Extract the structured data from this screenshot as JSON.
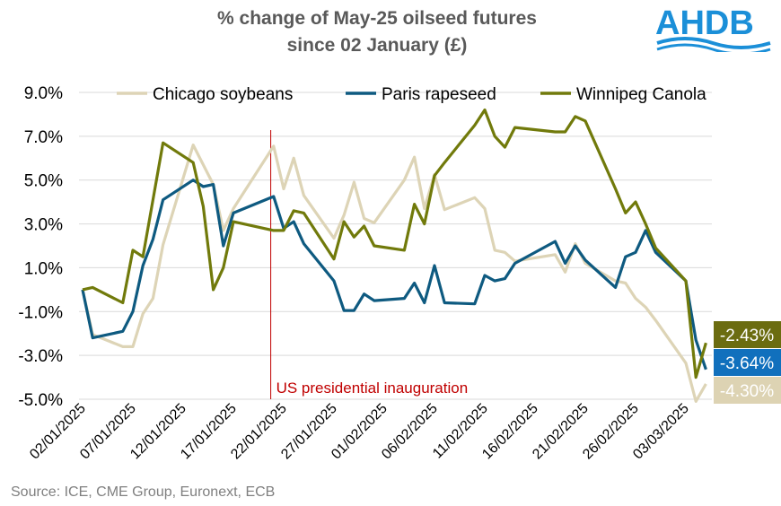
{
  "chart_data": {
    "type": "line",
    "title_line1": "% change of May-25 oilseed futures",
    "title_line2": "since 02 January (£)",
    "xlabel": "",
    "ylabel": "",
    "ylim": [
      -5,
      9
    ],
    "y_ticks": [
      -5,
      -3,
      -1,
      1,
      3,
      5,
      7,
      9
    ],
    "y_tick_labels": [
      "-5.0%",
      "-3.0%",
      "-1.0%",
      "1.0%",
      "3.0%",
      "5.0%",
      "7.0%",
      "9.0%"
    ],
    "x_ticks": [
      "2025-01-02",
      "2025-01-07",
      "2025-01-12",
      "2025-01-17",
      "2025-01-22",
      "2025-01-27",
      "2025-02-01",
      "2025-02-06",
      "2025-02-11",
      "2025-02-16",
      "2025-02-21",
      "2025-02-26",
      "2025-03-03"
    ],
    "x_tick_labels": [
      "02/01/2025",
      "07/01/2025",
      "12/01/2025",
      "17/01/2025",
      "22/01/2025",
      "27/01/2025",
      "01/02/2025",
      "06/02/2025",
      "11/02/2025",
      "16/02/2025",
      "21/02/2025",
      "26/02/2025",
      "03/03/2025"
    ],
    "grid": "horizontal",
    "legend_position": "top",
    "annotation": {
      "date": "2025-01-20",
      "label": "US presidential inauguration",
      "color": "#c00000"
    },
    "series": [
      {
        "name": "Chicago soybeans",
        "color": "#ddd4b6",
        "end_label": "-4.30%",
        "label_bg": "#ddd3b3",
        "points": [
          [
            "2025-01-02",
            0.0
          ],
          [
            "2025-01-03",
            -2.05
          ],
          [
            "2025-01-06",
            -2.6
          ],
          [
            "2025-01-07",
            -2.6
          ],
          [
            "2025-01-08",
            -1.1
          ],
          [
            "2025-01-09",
            -0.4
          ],
          [
            "2025-01-10",
            2.05
          ],
          [
            "2025-01-13",
            6.6
          ],
          [
            "2025-01-14",
            5.7
          ],
          [
            "2025-01-15",
            4.8
          ],
          [
            "2025-01-16",
            2.7
          ],
          [
            "2025-01-17",
            3.7
          ],
          [
            "2025-01-21",
            6.55
          ],
          [
            "2025-01-22",
            4.6
          ],
          [
            "2025-01-23",
            6.0
          ],
          [
            "2025-01-24",
            4.3
          ],
          [
            "2025-01-27",
            2.35
          ],
          [
            "2025-01-28",
            3.4
          ],
          [
            "2025-01-29",
            4.9
          ],
          [
            "2025-01-30",
            3.25
          ],
          [
            "2025-01-31",
            3.05
          ],
          [
            "2025-02-03",
            5.0
          ],
          [
            "2025-02-04",
            6.05
          ],
          [
            "2025-02-05",
            3.7
          ],
          [
            "2025-02-06",
            5.25
          ],
          [
            "2025-02-07",
            3.65
          ],
          [
            "2025-02-10",
            4.2
          ],
          [
            "2025-02-11",
            3.7
          ],
          [
            "2025-02-12",
            1.8
          ],
          [
            "2025-02-13",
            1.7
          ],
          [
            "2025-02-14",
            1.3
          ],
          [
            "2025-02-18",
            1.6
          ],
          [
            "2025-02-19",
            0.8
          ],
          [
            "2025-02-20",
            2.1
          ],
          [
            "2025-02-21",
            1.2
          ],
          [
            "2025-02-24",
            0.4
          ],
          [
            "2025-02-25",
            0.3
          ],
          [
            "2025-02-26",
            -0.4
          ],
          [
            "2025-02-27",
            -0.8
          ],
          [
            "2025-02-28",
            -1.4
          ],
          [
            "2025-03-03",
            -3.35
          ],
          [
            "2025-03-04",
            -5.1
          ],
          [
            "2025-03-05",
            -4.3
          ]
        ]
      },
      {
        "name": "Paris rapeseed",
        "color": "#0e5a80",
        "end_label": "-3.64%",
        "label_bg": "#1170bd",
        "points": [
          [
            "2025-01-02",
            0.0
          ],
          [
            "2025-01-03",
            -2.2
          ],
          [
            "2025-01-06",
            -1.9
          ],
          [
            "2025-01-07",
            -1.0
          ],
          [
            "2025-01-08",
            1.1
          ],
          [
            "2025-01-09",
            2.3
          ],
          [
            "2025-01-10",
            4.1
          ],
          [
            "2025-01-13",
            5.0
          ],
          [
            "2025-01-14",
            4.7
          ],
          [
            "2025-01-15",
            4.8
          ],
          [
            "2025-01-16",
            2.0
          ],
          [
            "2025-01-17",
            3.5
          ],
          [
            "2025-01-21",
            4.25
          ],
          [
            "2025-01-22",
            2.8
          ],
          [
            "2025-01-23",
            3.1
          ],
          [
            "2025-01-24",
            2.1
          ],
          [
            "2025-01-27",
            0.4
          ],
          [
            "2025-01-28",
            -0.95
          ],
          [
            "2025-01-29",
            -0.95
          ],
          [
            "2025-01-30",
            -0.2
          ],
          [
            "2025-01-31",
            -0.5
          ],
          [
            "2025-02-03",
            -0.4
          ],
          [
            "2025-02-04",
            0.3
          ],
          [
            "2025-02-05",
            -0.6
          ],
          [
            "2025-02-06",
            1.1
          ],
          [
            "2025-02-07",
            -0.6
          ],
          [
            "2025-02-10",
            -0.65
          ],
          [
            "2025-02-11",
            0.65
          ],
          [
            "2025-02-12",
            0.4
          ],
          [
            "2025-02-13",
            0.5
          ],
          [
            "2025-02-14",
            1.2
          ],
          [
            "2025-02-18",
            2.2
          ],
          [
            "2025-02-19",
            1.2
          ],
          [
            "2025-02-20",
            2.0
          ],
          [
            "2025-02-21",
            1.35
          ],
          [
            "2025-02-24",
            0.1
          ],
          [
            "2025-02-25",
            1.5
          ],
          [
            "2025-02-26",
            1.7
          ],
          [
            "2025-02-27",
            2.7
          ],
          [
            "2025-02-28",
            1.7
          ],
          [
            "2025-03-03",
            0.4
          ],
          [
            "2025-03-04",
            -2.3
          ],
          [
            "2025-03-05",
            -3.64
          ]
        ]
      },
      {
        "name": "Winnipeg Canola",
        "color": "#717a0b",
        "end_label": "-2.43%",
        "label_bg": "#6b6c10",
        "points": [
          [
            "2025-01-02",
            0.0
          ],
          [
            "2025-01-03",
            0.1
          ],
          [
            "2025-01-06",
            -0.6
          ],
          [
            "2025-01-07",
            1.8
          ],
          [
            "2025-01-08",
            1.5
          ],
          [
            "2025-01-10",
            6.7
          ],
          [
            "2025-01-13",
            5.8
          ],
          [
            "2025-01-14",
            3.8
          ],
          [
            "2025-01-15",
            0.0
          ],
          [
            "2025-01-16",
            1.0
          ],
          [
            "2025-01-17",
            3.1
          ],
          [
            "2025-01-21",
            2.7
          ],
          [
            "2025-01-22",
            2.7
          ],
          [
            "2025-01-23",
            3.6
          ],
          [
            "2025-01-24",
            3.5
          ],
          [
            "2025-01-27",
            1.4
          ],
          [
            "2025-01-28",
            3.1
          ],
          [
            "2025-01-29",
            2.4
          ],
          [
            "2025-01-30",
            2.9
          ],
          [
            "2025-01-31",
            2.0
          ],
          [
            "2025-02-03",
            1.8
          ],
          [
            "2025-02-04",
            3.9
          ],
          [
            "2025-02-05",
            3.0
          ],
          [
            "2025-02-06",
            5.2
          ],
          [
            "2025-02-07",
            5.8
          ],
          [
            "2025-02-10",
            7.5
          ],
          [
            "2025-02-11",
            8.2
          ],
          [
            "2025-02-12",
            7.0
          ],
          [
            "2025-02-13",
            6.5
          ],
          [
            "2025-02-14",
            7.4
          ],
          [
            "2025-02-18",
            7.2
          ],
          [
            "2025-02-19",
            7.2
          ],
          [
            "2025-02-20",
            7.9
          ],
          [
            "2025-02-21",
            7.7
          ],
          [
            "2025-02-24",
            4.6
          ],
          [
            "2025-02-25",
            3.5
          ],
          [
            "2025-02-26",
            4.0
          ],
          [
            "2025-02-27",
            3.0
          ],
          [
            "2025-02-28",
            1.9
          ],
          [
            "2025-03-03",
            0.4
          ],
          [
            "2025-03-04",
            -4.0
          ],
          [
            "2025-03-05",
            -2.43
          ]
        ]
      }
    ]
  },
  "logo": "AHDB",
  "source": "Source: ICE, CME Group, Euronext, ECB"
}
